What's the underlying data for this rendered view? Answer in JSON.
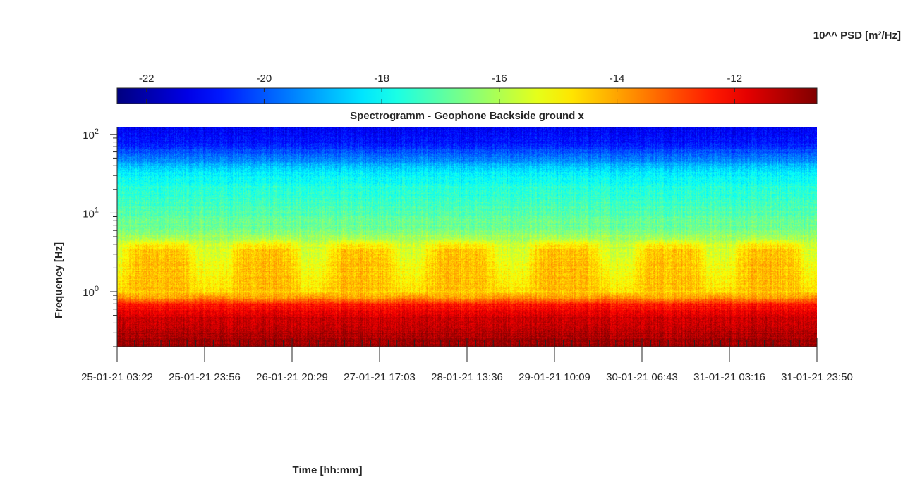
{
  "chart_data": {
    "type": "heatmap",
    "title": "Spectrogramm - Geophone Backside ground x",
    "xlabel": "Time [hh:mm]",
    "ylabel": "Frequency [Hz]",
    "colorbar_label": "10^^ PSD [m²/Hz]",
    "colormap": "jet",
    "color_scale": {
      "range": [
        -22.5,
        -10.6
      ],
      "ticks": [
        -22,
        -20,
        -18,
        -16,
        -14,
        -12
      ],
      "tick_labels": [
        "-22",
        "-20",
        "-18",
        "-16",
        "-14",
        "-12"
      ],
      "placement": "top"
    },
    "y_scale": "log",
    "ylim": [
      0.2,
      125
    ],
    "y_ticks": [
      1,
      10,
      100
    ],
    "y_tick_labels": [
      {
        "base": "10",
        "exp": "0"
      },
      {
        "base": "10",
        "exp": "1"
      },
      {
        "base": "10",
        "exp": "2"
      }
    ],
    "x_tick_labels": [
      "25-01-21 03:22",
      "25-01-21 23:56",
      "26-01-21 20:29",
      "27-01-21 17:03",
      "28-01-21 13:36",
      "29-01-21 10:09",
      "30-01-21 06:43",
      "31-01-21 03:16",
      "31-01-21 23:50"
    ],
    "grid": false,
    "legend": "none",
    "frequency_profile": [
      {
        "freq_hz": 0.2,
        "level": -10.9
      },
      {
        "freq_hz": 0.3,
        "level": -11.2
      },
      {
        "freq_hz": 0.5,
        "level": -11.6
      },
      {
        "freq_hz": 0.7,
        "level": -12.4
      },
      {
        "freq_hz": 1.0,
        "level": -14.8
      },
      {
        "freq_hz": 2.0,
        "level": -15.2
      },
      {
        "freq_hz": 4.0,
        "level": -15.7
      },
      {
        "freq_hz": 6.0,
        "level": -16.6
      },
      {
        "freq_hz": 10.0,
        "level": -17.1
      },
      {
        "freq_hz": 20.0,
        "level": -17.6
      },
      {
        "freq_hz": 35.0,
        "level": -18.3
      },
      {
        "freq_hz": 50.0,
        "level": -19.6
      },
      {
        "freq_hz": 80.0,
        "level": -20.8
      },
      {
        "freq_hz": 125.0,
        "level": -21.2
      }
    ],
    "daytime_bursts": {
      "band_hz": [
        1.0,
        4.0
      ],
      "level": -14.3,
      "centers_fraction_of_time": [
        0.06,
        0.21,
        0.35,
        0.49,
        0.64,
        0.79,
        0.93
      ]
    }
  }
}
